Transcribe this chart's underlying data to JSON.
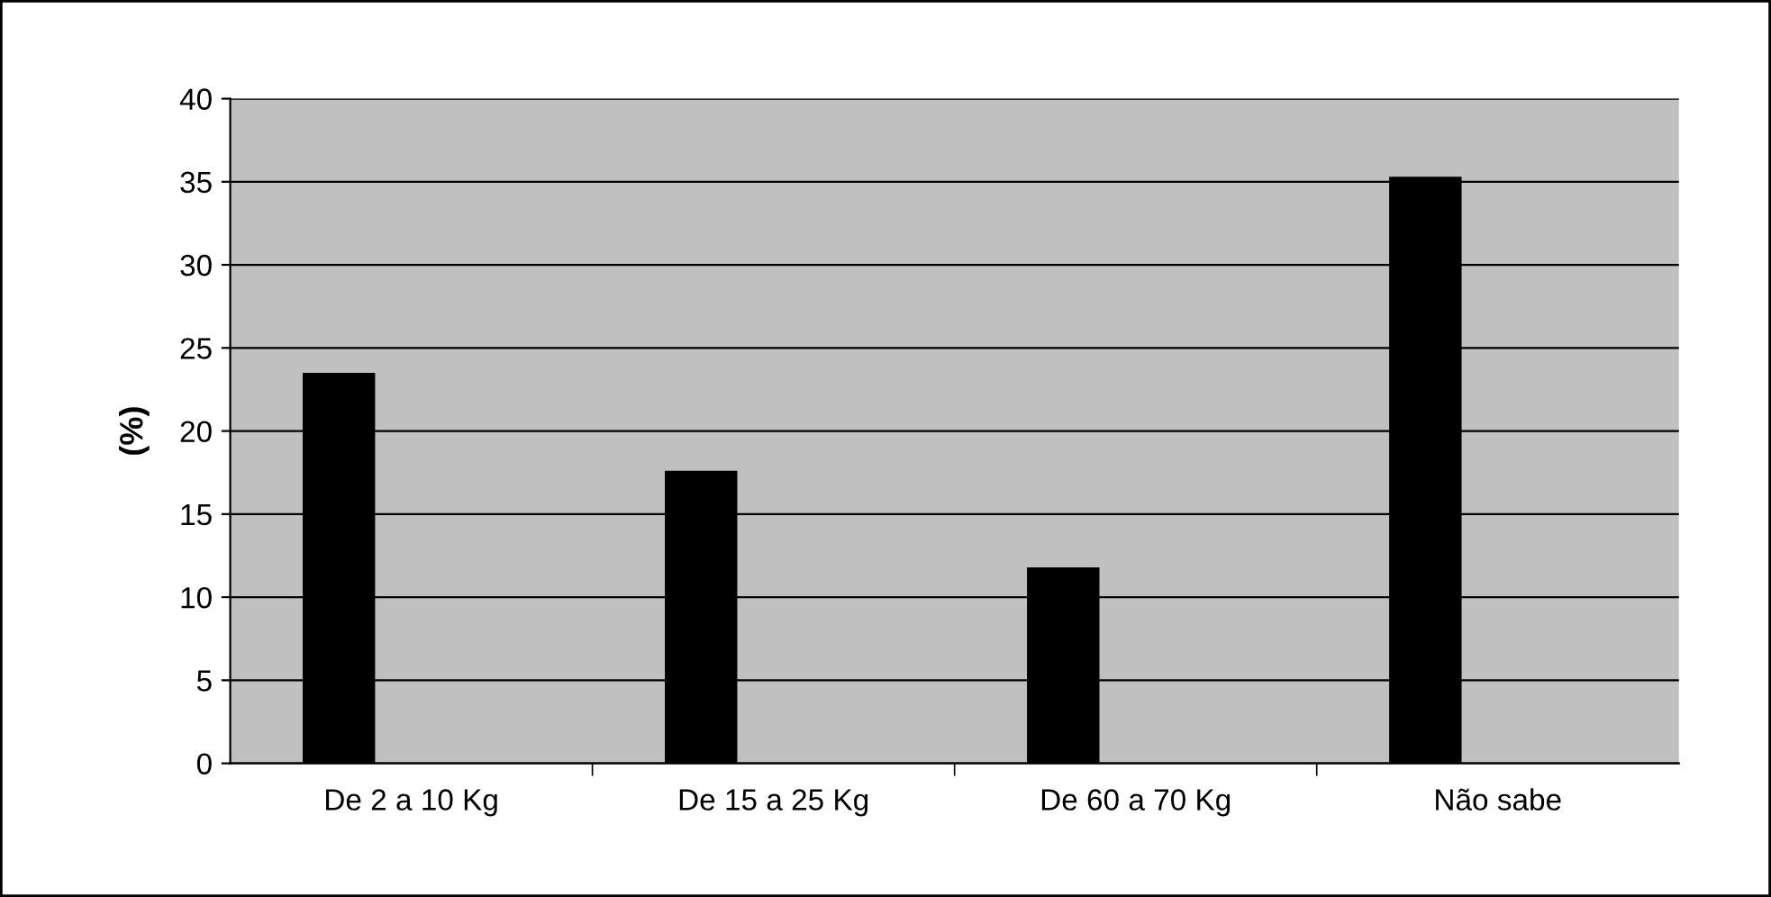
{
  "chart_data": {
    "type": "bar",
    "ylabel": "(%)",
    "categories": [
      "De 2 a 10 Kg",
      "De 15 a 25 Kg",
      "De 60 a 70 Kg",
      "Não sabe"
    ],
    "values": [
      23.5,
      17.6,
      11.8,
      35.3
    ],
    "color": "#000000",
    "ylim": [
      0,
      40
    ],
    "yticks": [
      0,
      5,
      10,
      15,
      20,
      25,
      30,
      35,
      40
    ],
    "grid": "y",
    "legend": false
  }
}
